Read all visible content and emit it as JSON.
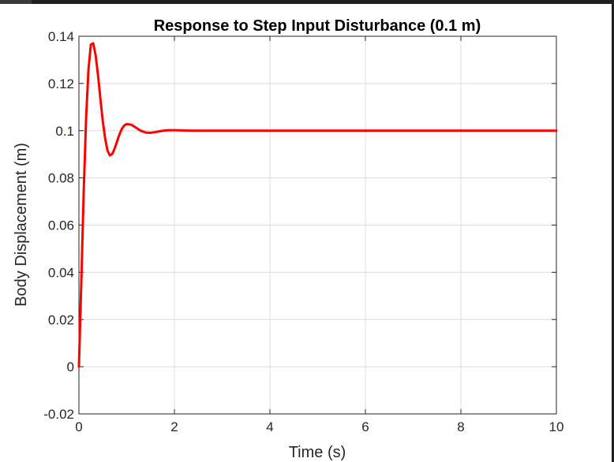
{
  "chart_data": {
    "type": "line",
    "title": "Response to Step Input Disturbance (0.1 m)",
    "xlabel": "Time (s)",
    "ylabel": "Body Displacement (m)",
    "xlim": [
      0,
      10
    ],
    "ylim": [
      -0.02,
      0.14
    ],
    "xticks": [
      0,
      2,
      4,
      6,
      8,
      10
    ],
    "xtick_labels": [
      "0",
      "2",
      "4",
      "6",
      "8",
      "10"
    ],
    "yticks": [
      -0.02,
      0,
      0.02,
      0.04,
      0.06,
      0.08,
      0.1,
      0.12,
      0.14
    ],
    "ytick_labels": [
      "-0.02",
      "0",
      "0.02",
      "0.04",
      "0.06",
      "0.08",
      "0.1",
      "0.12",
      "0.14"
    ],
    "grid": true,
    "series": [
      {
        "color": "#ff0000",
        "x": [
          0,
          0.05,
          0.1,
          0.15,
          0.2,
          0.25,
          0.3,
          0.35,
          0.4,
          0.45,
          0.5,
          0.55,
          0.6,
          0.65,
          0.7,
          0.75,
          0.8,
          0.85,
          0.9,
          0.95,
          1.0,
          1.1,
          1.2,
          1.3,
          1.4,
          1.5,
          1.6,
          1.7,
          1.8,
          1.9,
          2.0,
          2.2,
          2.4,
          2.6,
          2.8,
          3.0,
          4.0,
          5.0,
          6.0,
          7.0,
          8.0,
          9.0,
          10.0
        ],
        "y": [
          0,
          0.036,
          0.074,
          0.105,
          0.126,
          0.1365,
          0.137,
          0.132,
          0.1235,
          0.1135,
          0.104,
          0.0965,
          0.0915,
          0.0895,
          0.0902,
          0.0925,
          0.0955,
          0.0985,
          0.1008,
          0.1022,
          0.1028,
          0.1025,
          0.1012,
          0.0999,
          0.0992,
          0.0991,
          0.0994,
          0.0998,
          0.1001,
          0.1002,
          0.1002,
          0.1001,
          0.1,
          0.1,
          0.1,
          0.1,
          0.1,
          0.1,
          0.1,
          0.1,
          0.1,
          0.1,
          0.1
        ]
      }
    ]
  }
}
